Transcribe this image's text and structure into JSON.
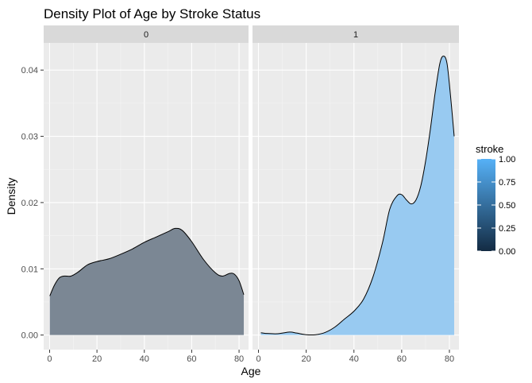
{
  "chart_data": {
    "type": "area",
    "title": "Density Plot of Age by Stroke Status",
    "xlabel": "Age",
    "ylabel": "Density",
    "xlim": [
      -2.5,
      84
    ],
    "ylim": [
      -0.0022,
      0.0441
    ],
    "x_ticks": [
      0,
      20,
      40,
      60,
      80
    ],
    "y_ticks": [
      0.0,
      0.01,
      0.02,
      0.03,
      0.04
    ],
    "y_tick_labels": [
      "0.00",
      "0.01",
      "0.02",
      "0.03",
      "0.04"
    ],
    "grid": true,
    "facet_variable": "stroke",
    "panels": [
      {
        "label": "0",
        "fill_color": "#7b8794",
        "points": [
          [
            0.08,
            0.0059
          ],
          [
            2,
            0.0075
          ],
          [
            4,
            0.0086
          ],
          [
            6,
            0.0089
          ],
          [
            9,
            0.0089
          ],
          [
            12,
            0.0095
          ],
          [
            16,
            0.0106
          ],
          [
            20,
            0.0111
          ],
          [
            25,
            0.0115
          ],
          [
            30,
            0.0122
          ],
          [
            35,
            0.013
          ],
          [
            40,
            0.014
          ],
          [
            45,
            0.0148
          ],
          [
            50,
            0.0156
          ],
          [
            53,
            0.0161
          ],
          [
            56,
            0.0158
          ],
          [
            60,
            0.0141
          ],
          [
            65,
            0.0114
          ],
          [
            70,
            0.0094
          ],
          [
            73,
            0.0089
          ],
          [
            76,
            0.0093
          ],
          [
            78,
            0.0092
          ],
          [
            80,
            0.0082
          ],
          [
            82,
            0.0061
          ]
        ]
      },
      {
        "label": "1",
        "fill_color": "#98caf1",
        "points": [
          [
            1,
            0.00035
          ],
          [
            3,
            0.00025
          ],
          [
            8,
            0.0002
          ],
          [
            13,
            0.00045
          ],
          [
            16,
            0.0003
          ],
          [
            20,
            5e-05
          ],
          [
            24,
            5e-05
          ],
          [
            28,
            0.0004
          ],
          [
            32,
            0.0012
          ],
          [
            36,
            0.0024
          ],
          [
            40,
            0.0036
          ],
          [
            44,
            0.0054
          ],
          [
            48,
            0.0088
          ],
          [
            52,
            0.014
          ],
          [
            55,
            0.019
          ],
          [
            58,
            0.021
          ],
          [
            60,
            0.0212
          ],
          [
            62,
            0.0204
          ],
          [
            64,
            0.0198
          ],
          [
            66,
            0.0204
          ],
          [
            68,
            0.0225
          ],
          [
            70,
            0.0262
          ],
          [
            72,
            0.031
          ],
          [
            74,
            0.0365
          ],
          [
            76,
            0.041
          ],
          [
            77.5,
            0.0421
          ],
          [
            79,
            0.041
          ],
          [
            80.5,
            0.036
          ],
          [
            82,
            0.03
          ]
        ]
      }
    ],
    "legend": {
      "title": "stroke",
      "labels": [
        "1.00",
        "0.75",
        "0.50",
        "0.25",
        "0.00"
      ],
      "values": [
        1.0,
        0.75,
        0.5,
        0.25,
        0.0
      ],
      "color_low": "#132b43",
      "color_high": "#56b1f7",
      "placement": "right"
    }
  }
}
